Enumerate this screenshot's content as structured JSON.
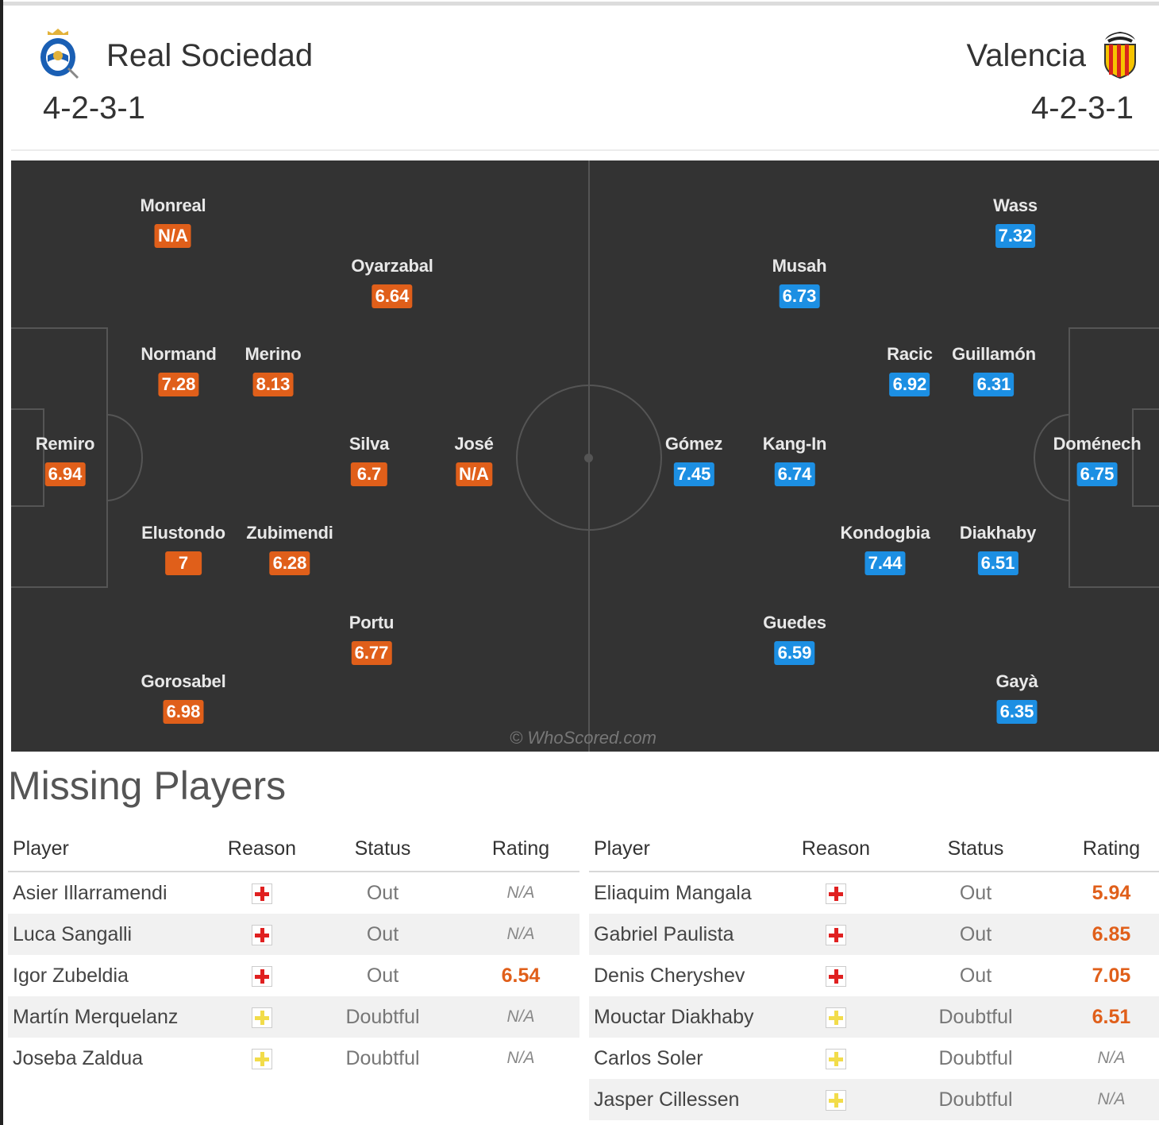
{
  "home_team": {
    "name": "Real Sociedad",
    "formation": "4-2-3-1",
    "color": "#e05f1a",
    "crest": "real-sociedad-crest",
    "players": [
      {
        "name": "Monreal",
        "rating": "N/A"
      },
      {
        "name": "Oyarzabal",
        "rating": "6.64"
      },
      {
        "name": "Normand",
        "rating": "7.28"
      },
      {
        "name": "Merino",
        "rating": "8.13"
      },
      {
        "name": "Remiro",
        "rating": "6.94"
      },
      {
        "name": "Silva",
        "rating": "6.7"
      },
      {
        "name": "José",
        "rating": "N/A"
      },
      {
        "name": "Elustondo",
        "rating": "7"
      },
      {
        "name": "Zubimendi",
        "rating": "6.28"
      },
      {
        "name": "Portu",
        "rating": "6.77"
      },
      {
        "name": "Gorosabel",
        "rating": "6.98"
      }
    ]
  },
  "away_team": {
    "name": "Valencia",
    "formation": "4-2-3-1",
    "color": "#1c8fe3",
    "crest": "valencia-crest",
    "players": [
      {
        "name": "Wass",
        "rating": "7.32"
      },
      {
        "name": "Musah",
        "rating": "6.73"
      },
      {
        "name": "Racic",
        "rating": "6.92"
      },
      {
        "name": "Guillamón",
        "rating": "6.31"
      },
      {
        "name": "Gómez",
        "rating": "7.45"
      },
      {
        "name": "Kang-In",
        "rating": "6.74"
      },
      {
        "name": "Doménech",
        "rating": "6.75"
      },
      {
        "name": "Kondogbia",
        "rating": "7.44"
      },
      {
        "name": "Diakhaby",
        "rating": "6.51"
      },
      {
        "name": "Guedes",
        "rating": "6.59"
      },
      {
        "name": "Gayà",
        "rating": "6.35"
      }
    ]
  },
  "watermark": "© WhoScored.com",
  "missing": {
    "title": "Missing Players",
    "headers": {
      "player": "Player",
      "reason": "Reason",
      "status": "Status",
      "rating": "Rating"
    },
    "home": [
      {
        "player": "Asier Illarramendi",
        "reason": "injury-icon",
        "status": "Out",
        "rating": "N/A"
      },
      {
        "player": "Luca Sangalli",
        "reason": "injury-icon",
        "status": "Out",
        "rating": "N/A"
      },
      {
        "player": "Igor Zubeldia",
        "reason": "injury-icon",
        "status": "Out",
        "rating": "6.54"
      },
      {
        "player": "Martín Merquelanz",
        "reason": "doubtful-icon",
        "status": "Doubtful",
        "rating": "N/A"
      },
      {
        "player": "Joseba Zaldua",
        "reason": "doubtful-icon",
        "status": "Doubtful",
        "rating": "N/A"
      }
    ],
    "away": [
      {
        "player": "Eliaquim Mangala",
        "reason": "injury-icon",
        "status": "Out",
        "rating": "5.94"
      },
      {
        "player": "Gabriel Paulista",
        "reason": "injury-icon",
        "status": "Out",
        "rating": "6.85"
      },
      {
        "player": "Denis Cheryshev",
        "reason": "injury-icon",
        "status": "Out",
        "rating": "7.05"
      },
      {
        "player": "Mouctar Diakhaby",
        "reason": "doubtful-icon",
        "status": "Doubtful",
        "rating": "6.51"
      },
      {
        "player": "Carlos Soler",
        "reason": "doubtful-icon",
        "status": "Doubtful",
        "rating": "N/A"
      },
      {
        "player": "Jasper Cillessen",
        "reason": "doubtful-icon",
        "status": "Doubtful",
        "rating": "N/A"
      }
    ]
  }
}
